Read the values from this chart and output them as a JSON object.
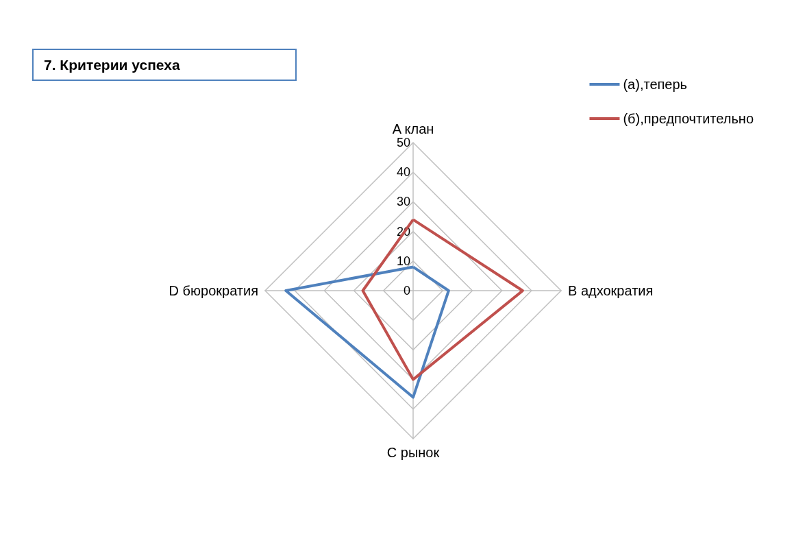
{
  "chart_data": {
    "type": "radar",
    "title": "7. Критерии успеха",
    "categories": [
      "A клан",
      "B адхократия",
      "C рынок",
      "D бюрократия"
    ],
    "series": [
      {
        "name": "(а),теперь",
        "color": "#4f81bd",
        "values": [
          8,
          12,
          36,
          43
        ]
      },
      {
        "name": "(б),предпочтительно",
        "color": "#c0504d",
        "values": [
          24,
          37,
          30,
          17
        ]
      }
    ],
    "ylim": [
      0,
      50
    ],
    "yticks": [
      0,
      10,
      20,
      30,
      40,
      50
    ],
    "grid": true,
    "legend": "top right",
    "marker": "none"
  }
}
